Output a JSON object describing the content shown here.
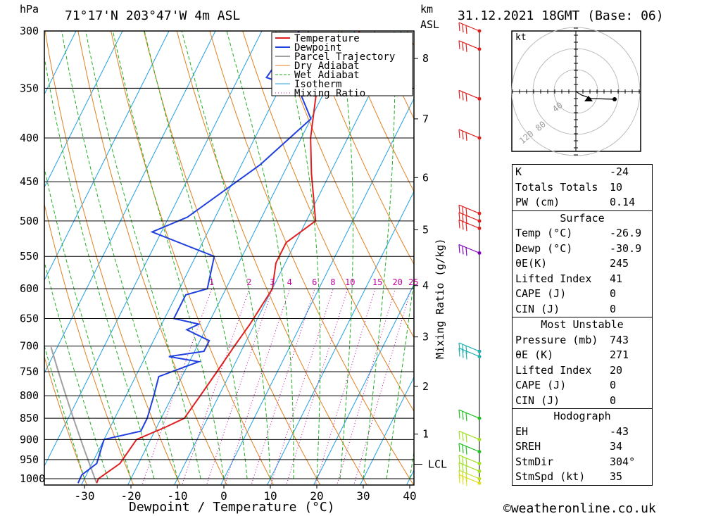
{
  "header": {
    "pressure_unit": "hPa",
    "location": "71°17'N  203°47'W  4m  ASL",
    "height_unit_line1": "km",
    "height_unit_line2": "ASL",
    "datetime": "31.12.2021  18GMT  (Base: 06)"
  },
  "chart_data": {
    "type": "line",
    "xlabel": "Dewpoint / Temperature (°C)",
    "ylabel": "hPa",
    "right_label": "Mixing Ratio (g/kg)",
    "x_ticks": [
      -30,
      -20,
      -10,
      0,
      10,
      20,
      30,
      40
    ],
    "pressure_levels": [
      300,
      350,
      400,
      450,
      500,
      550,
      600,
      650,
      700,
      750,
      800,
      850,
      900,
      950,
      1000
    ],
    "height_km_labels": [
      {
        "km": "8",
        "p": 323
      },
      {
        "km": "7",
        "p": 380
      },
      {
        "km": "6",
        "p": 445
      },
      {
        "km": "5",
        "p": 512
      },
      {
        "km": "4",
        "p": 595
      },
      {
        "km": "3",
        "p": 683
      },
      {
        "km": "2",
        "p": 780
      },
      {
        "km": "1",
        "p": 887
      }
    ],
    "lcl_label": "LCL",
    "lcl_p": 962,
    "mixing_ratio_labels": [
      "1",
      "2",
      "3",
      "4",
      "6",
      "8",
      "10",
      "15",
      "20",
      "25"
    ],
    "legend": [
      "Temperature",
      "Dewpoint",
      "Parcel Trajectory",
      "Dry Adiabat",
      "Wet Adiabat",
      "Isotherm",
      "Mixing Ratio"
    ],
    "colors": {
      "temperature": "#e02020",
      "dewpoint": "#2040e0",
      "parcel": "#a0a0a0",
      "dry_adiabat": "#e08020",
      "wet_adiabat": "#20b020",
      "isotherm": "#20a0e0",
      "mixing": "#c000a0"
    },
    "series": [
      {
        "name": "Temperature",
        "points": [
          [
            -26.9,
            1012
          ],
          [
            -27,
            1000
          ],
          [
            -24,
            960
          ],
          [
            -23,
            900
          ],
          [
            -18,
            870
          ],
          [
            -15,
            850
          ],
          [
            -14,
            800
          ],
          [
            -13,
            750
          ],
          [
            -12,
            700
          ],
          [
            -11,
            660
          ],
          [
            -10,
            600
          ],
          [
            -12,
            560
          ],
          [
            -12,
            530
          ],
          [
            -8,
            500
          ],
          [
            -14,
            440
          ],
          [
            -18,
            400
          ],
          [
            -22,
            350
          ],
          [
            -18,
            330
          ],
          [
            -19,
            300
          ]
        ]
      },
      {
        "name": "Dewpoint",
        "points": [
          [
            -30.9,
            1012
          ],
          [
            -31,
            990
          ],
          [
            -29,
            960
          ],
          [
            -30,
            900
          ],
          [
            -23,
            880
          ],
          [
            -23,
            850
          ],
          [
            -24,
            800
          ],
          [
            -25,
            760
          ],
          [
            -18,
            730
          ],
          [
            -25,
            720
          ],
          [
            -18,
            710
          ],
          [
            -18,
            690
          ],
          [
            -24,
            670
          ],
          [
            -22,
            660
          ],
          [
            -28,
            650
          ],
          [
            -28,
            610
          ],
          [
            -24,
            600
          ],
          [
            -26,
            550
          ],
          [
            -42,
            515
          ],
          [
            -36,
            495
          ],
          [
            -26,
            430
          ],
          [
            -20,
            380
          ],
          [
            -26,
            350
          ],
          [
            -34,
            340
          ],
          [
            -32,
            300
          ]
        ]
      }
    ],
    "wind_barbs": [
      {
        "p": 300,
        "color": "#e02020"
      },
      {
        "p": 315,
        "color": "#e02020"
      },
      {
        "p": 360,
        "color": "#e02020"
      },
      {
        "p": 400,
        "color": "#e02020"
      },
      {
        "p": 490,
        "color": "#e02020"
      },
      {
        "p": 500,
        "color": "#e02020"
      },
      {
        "p": 510,
        "color": "#e02020"
      },
      {
        "p": 545,
        "color": "#8000c0"
      },
      {
        "p": 710,
        "color": "#20b0b0"
      },
      {
        "p": 720,
        "color": "#20b0b0"
      },
      {
        "p": 850,
        "color": "#20c020"
      },
      {
        "p": 900,
        "color": "#a0e020"
      },
      {
        "p": 930,
        "color": "#20c020"
      },
      {
        "p": 960,
        "color": "#a0e020"
      },
      {
        "p": 980,
        "color": "#a0e020"
      },
      {
        "p": 1000,
        "color": "#c0e020"
      },
      {
        "p": 1012,
        "color": "#e0e020"
      }
    ],
    "hodograph": {
      "unit": "kt",
      "ring_labels": [
        "40",
        "80",
        "120"
      ]
    }
  },
  "indices": {
    "k_label": "K",
    "k_value": "-24",
    "tt_label": "Totals Totals",
    "tt_value": "10",
    "pw_label": "PW (cm)",
    "pw_value": "0.14"
  },
  "surface": {
    "title": "Surface",
    "temp_label": "Temp (°C)",
    "temp_value": "-26.9",
    "dewp_label": "Dewp (°C)",
    "dewp_value": "-30.9",
    "thetae_label": "θE(K)",
    "thetae_value": "245",
    "li_label": "Lifted Index",
    "li_value": "41",
    "cape_label": "CAPE (J)",
    "cape_value": "0",
    "cin_label": "CIN (J)",
    "cin_value": "0"
  },
  "most_unstable": {
    "title": "Most Unstable",
    "pressure_label": "Pressure (mb)",
    "pressure_value": "743",
    "thetae_label": "θE (K)",
    "thetae_value": "271",
    "li_label": "Lifted Index",
    "li_value": "20",
    "cape_label": "CAPE (J)",
    "cape_value": "0",
    "cin_label": "CIN (J)",
    "cin_value": "0"
  },
  "hodograph_table": {
    "title": "Hodograph",
    "eh_label": "EH",
    "eh_value": "-43",
    "sreh_label": "SREH",
    "sreh_value": "34",
    "stmdir_label": "StmDir",
    "stmdir_value": "304°",
    "stmspd_label": "StmSpd (kt)",
    "stmspd_value": "35"
  },
  "footer": {
    "copyright": "©weatheronline.co.uk"
  }
}
